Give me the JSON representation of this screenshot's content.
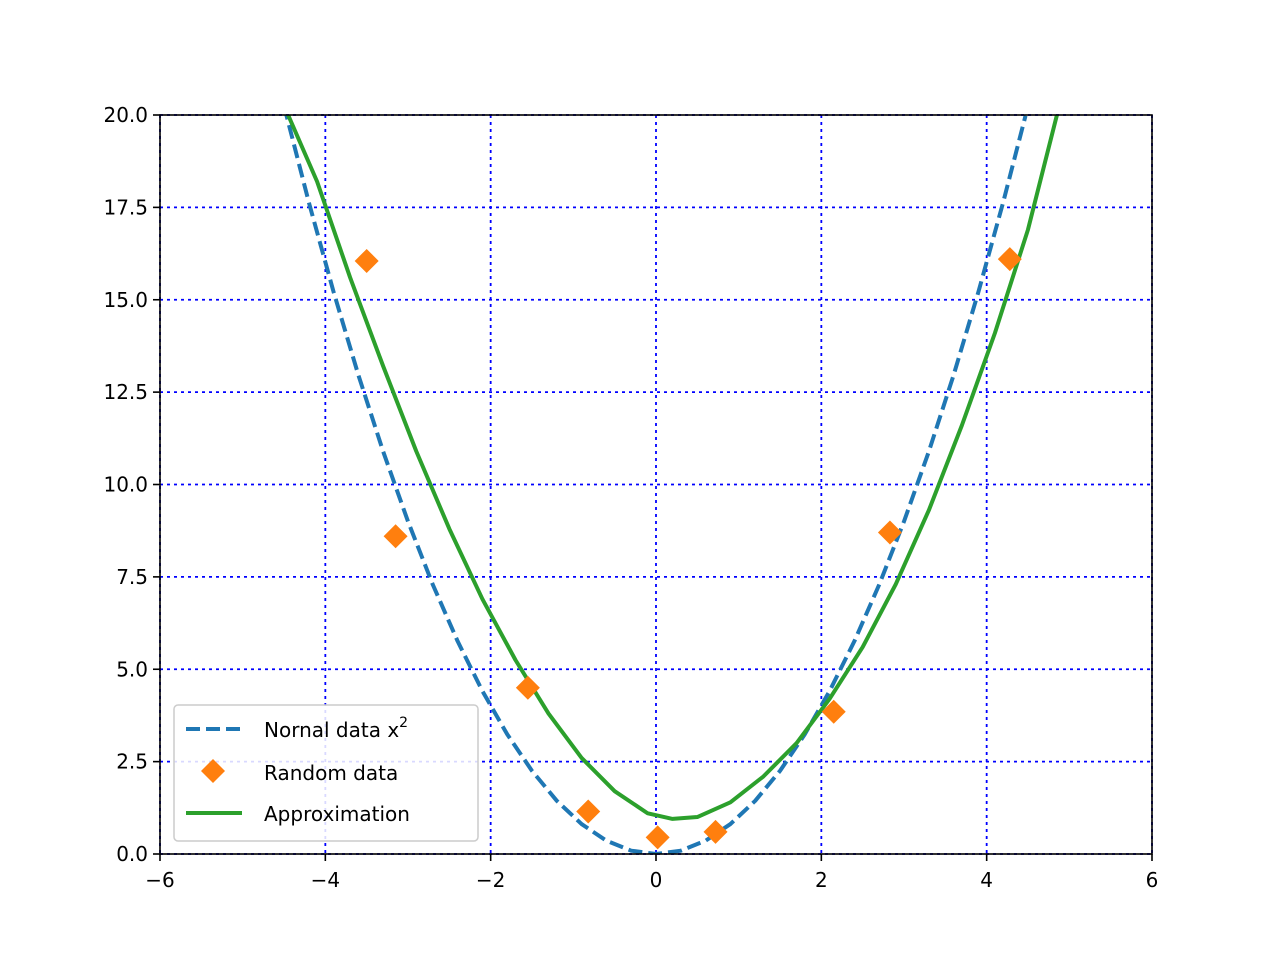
{
  "chart_data": {
    "type": "line",
    "xlim": [
      -6,
      6
    ],
    "ylim": [
      0,
      20
    ],
    "xticks": [
      -6,
      -4,
      -2,
      0,
      2,
      4,
      6
    ],
    "xtick_labels": [
      "−6",
      "−4",
      "−2",
      "0",
      "2",
      "4",
      "6"
    ],
    "yticks": [
      0,
      2.5,
      5,
      7.5,
      10,
      12.5,
      15,
      17.5,
      20
    ],
    "ytick_labels": [
      "0.0",
      "2.5",
      "5.0",
      "7.5",
      "10.0",
      "12.5",
      "15.0",
      "17.5",
      "20.0"
    ],
    "grid": true,
    "grid_color": "#0000ff",
    "legend_position": "lower-left",
    "series": [
      {
        "key": "normal",
        "name": "Nornal data x",
        "name_superscript": "2",
        "kind": "line",
        "style": "dashed",
        "color": "#1f77b4",
        "x": [
          -4.5,
          -4.2,
          -3.9,
          -3.6,
          -3.3,
          -3.0,
          -2.7,
          -2.4,
          -2.1,
          -1.8,
          -1.5,
          -1.2,
          -0.9,
          -0.6,
          -0.3,
          0.0,
          0.3,
          0.6,
          0.9,
          1.2,
          1.5,
          1.8,
          2.1,
          2.4,
          2.7,
          3.0,
          3.3,
          3.6,
          3.9,
          4.2,
          4.47
        ],
        "y": [
          20.25,
          17.64,
          15.21,
          12.96,
          10.89,
          9.0,
          7.29,
          5.76,
          4.41,
          3.24,
          2.25,
          1.44,
          0.81,
          0.36,
          0.09,
          0.0,
          0.09,
          0.36,
          0.81,
          1.44,
          2.25,
          3.24,
          4.41,
          5.76,
          7.29,
          9.0,
          10.89,
          12.96,
          15.21,
          17.64,
          19.98
        ]
      },
      {
        "key": "random",
        "name": "Random data",
        "kind": "scatter",
        "marker": "diamond",
        "color": "#ff7f0e",
        "x": [
          -3.5,
          -3.15,
          -1.55,
          -0.82,
          0.02,
          0.72,
          2.15,
          2.83,
          4.28
        ],
        "y": [
          16.05,
          8.6,
          4.5,
          1.15,
          0.45,
          0.6,
          3.85,
          8.7,
          16.1
        ]
      },
      {
        "key": "approx",
        "name": "Approximation",
        "kind": "line",
        "style": "solid",
        "color": "#2ca02c",
        "x": [
          -4.45,
          -4.1,
          -3.7,
          -3.3,
          -2.9,
          -2.5,
          -2.1,
          -1.7,
          -1.3,
          -0.9,
          -0.5,
          -0.1,
          0.2,
          0.5,
          0.9,
          1.3,
          1.7,
          2.1,
          2.5,
          2.9,
          3.3,
          3.7,
          4.1,
          4.5,
          4.85
        ],
        "y": [
          20.0,
          18.2,
          15.6,
          13.2,
          10.9,
          8.8,
          6.9,
          5.25,
          3.8,
          2.6,
          1.7,
          1.1,
          0.95,
          1.0,
          1.4,
          2.1,
          3.0,
          4.2,
          5.6,
          7.3,
          9.3,
          11.6,
          14.1,
          16.9,
          20.0
        ]
      }
    ]
  }
}
